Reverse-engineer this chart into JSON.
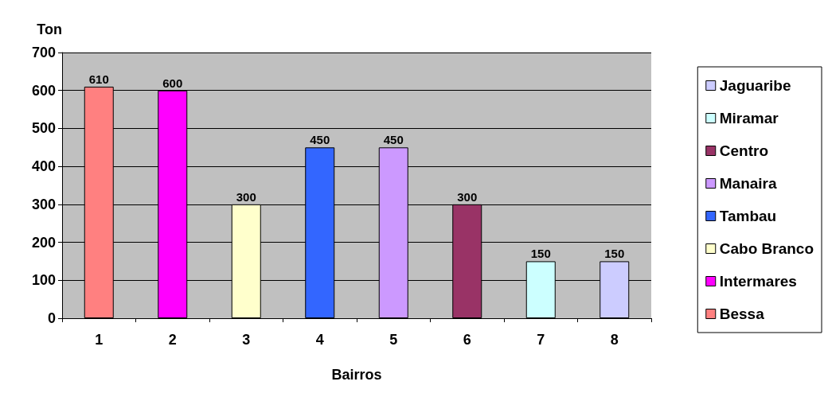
{
  "chart_data": {
    "type": "bar",
    "xlabel": "Bairros",
    "ylabel": "Ton",
    "categories": [
      "1",
      "2",
      "3",
      "4",
      "5",
      "6",
      "7",
      "8"
    ],
    "series": [
      {
        "name": "Bessa",
        "color": "#ff8080",
        "values": [
          610,
          null,
          null,
          null,
          null,
          null,
          null,
          null
        ]
      },
      {
        "name": "Intermares",
        "color": "#ff00ff",
        "values": [
          null,
          600,
          null,
          null,
          null,
          null,
          null,
          null
        ]
      },
      {
        "name": "Cabo Branco",
        "color": "#ffffcc",
        "values": [
          null,
          null,
          300,
          null,
          null,
          null,
          null,
          null
        ]
      },
      {
        "name": "Tambau",
        "color": "#3366ff",
        "values": [
          null,
          null,
          null,
          450,
          null,
          null,
          null,
          null
        ]
      },
      {
        "name": "Manaira",
        "color": "#cc99ff",
        "values": [
          null,
          null,
          null,
          null,
          450,
          null,
          null,
          null
        ]
      },
      {
        "name": "Centro",
        "color": "#993366",
        "values": [
          null,
          null,
          null,
          null,
          null,
          300,
          null,
          null
        ]
      },
      {
        "name": "Miramar",
        "color": "#ccffff",
        "values": [
          null,
          null,
          null,
          null,
          null,
          null,
          150,
          null
        ]
      },
      {
        "name": "Jaguaribe",
        "color": "#ccccff",
        "values": [
          null,
          null,
          null,
          null,
          null,
          null,
          null,
          150
        ]
      }
    ],
    "ylim": [
      0,
      700
    ],
    "yticks": [
      0,
      100,
      200,
      300,
      400,
      500,
      600,
      700
    ],
    "grid": "y",
    "legend": "right",
    "data_labels": true
  }
}
